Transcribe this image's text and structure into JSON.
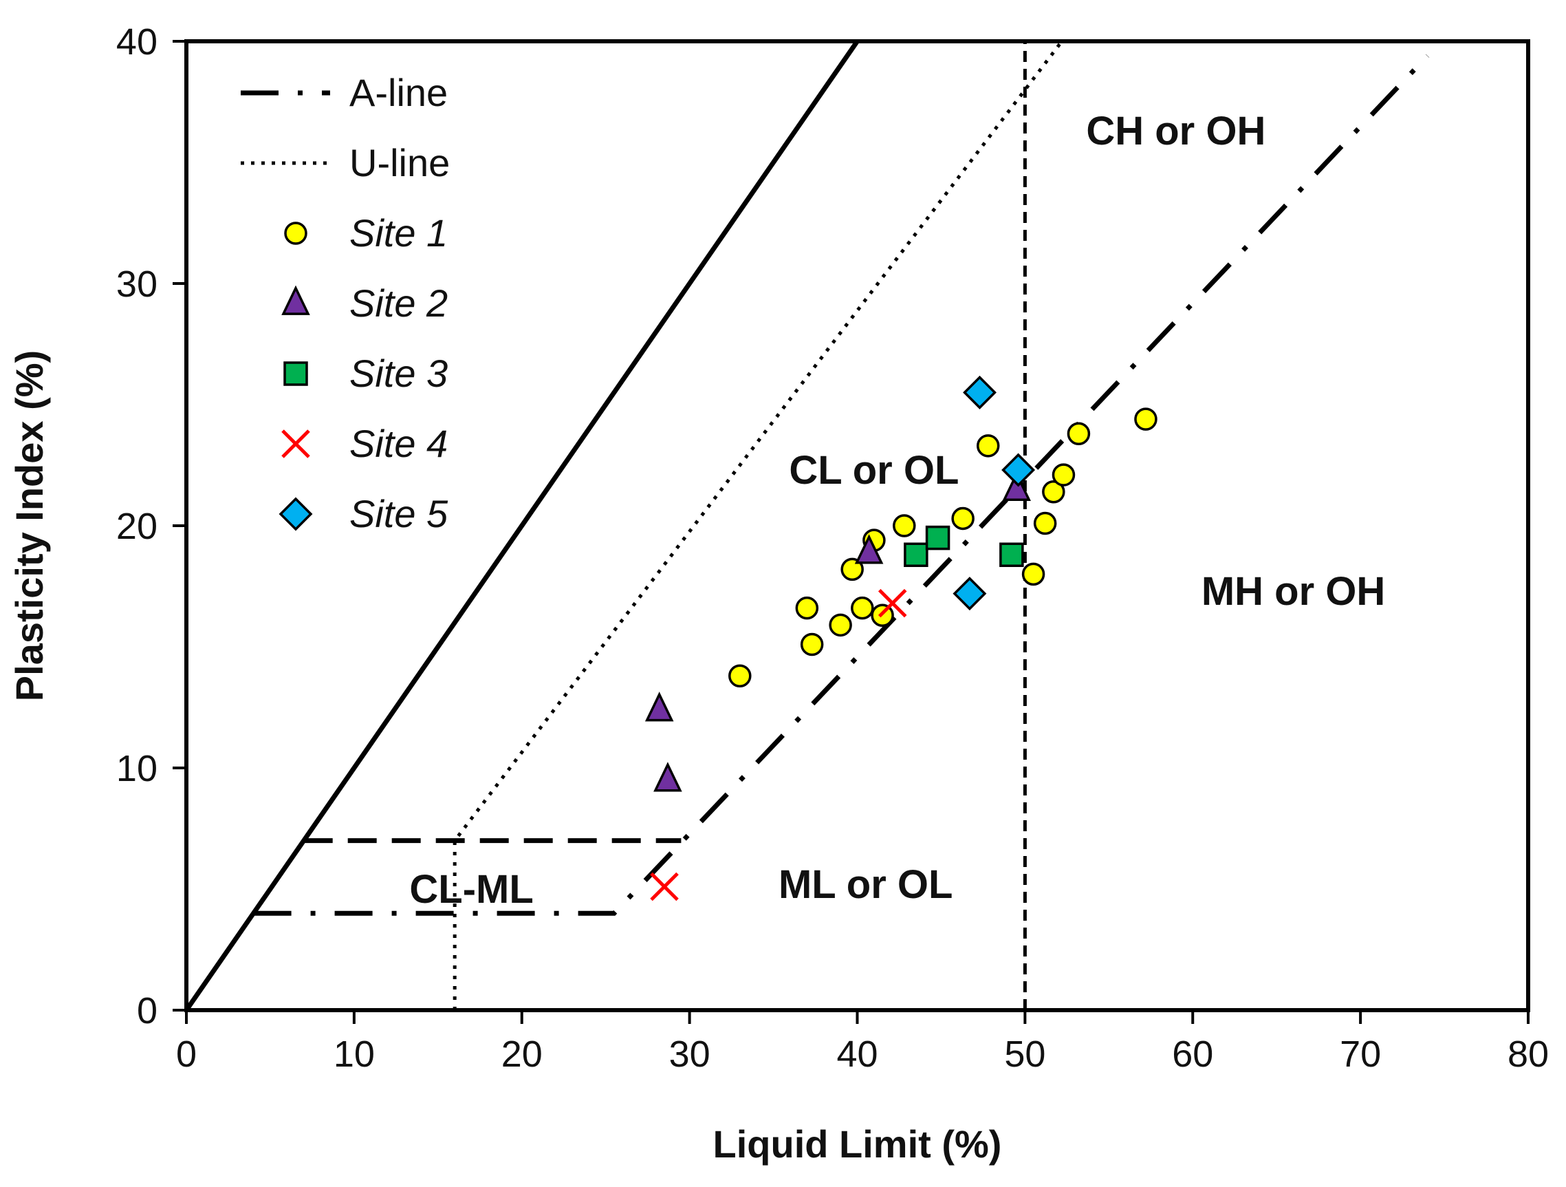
{
  "chart_data": {
    "type": "scatter",
    "title": "",
    "xlabel": "Liquid Limit (%)",
    "ylabel": "Plasticity Index (%)",
    "xlim": [
      0,
      80
    ],
    "ylim": [
      0,
      40
    ],
    "x_ticks": [
      0,
      10,
      20,
      30,
      40,
      50,
      60,
      70,
      80
    ],
    "y_ticks": [
      0,
      10,
      20,
      30,
      40
    ],
    "grid": false,
    "legend_position": "top-left",
    "reference_lines": [
      {
        "name": "A-line",
        "legend": true,
        "style": "dash-dot",
        "points": [
          [
            4,
            4
          ],
          [
            25.5,
            4
          ],
          [
            74,
            39.4
          ]
        ]
      },
      {
        "name": "U-line",
        "legend": true,
        "style": "dotted",
        "points": [
          [
            16,
            0
          ],
          [
            16,
            7
          ],
          [
            52.2,
            40
          ]
        ]
      },
      {
        "name": "boundary-line",
        "legend": false,
        "style": "solid",
        "points": [
          [
            0,
            0
          ],
          [
            40,
            40
          ]
        ]
      },
      {
        "name": "LL50-line",
        "legend": false,
        "style": "short-dash",
        "points": [
          [
            50,
            0
          ],
          [
            50,
            40
          ]
        ]
      },
      {
        "name": "PI7-line",
        "legend": false,
        "style": "dashed",
        "points": [
          [
            7,
            7
          ],
          [
            29.5,
            7
          ]
        ]
      }
    ],
    "regions": [
      {
        "label": "CH or OH",
        "x": 59,
        "y": 36.3
      },
      {
        "label": "CL or OL",
        "x": 41,
        "y": 22.3
      },
      {
        "label": "MH  or  OH",
        "x": 66,
        "y": 17.3
      },
      {
        "label": "ML or OL",
        "x": 40.5,
        "y": 5.2
      },
      {
        "label": "CL-ML",
        "x": 17,
        "y": 5
      },
      {
        "label": "",
        "x": 0,
        "y": 0
      }
    ],
    "series": [
      {
        "name": "Site 1",
        "marker": "circle",
        "fill": "#ffff00",
        "points": [
          [
            33,
            13.8
          ],
          [
            37,
            16.6
          ],
          [
            37.3,
            15.1
          ],
          [
            39,
            15.9
          ],
          [
            39.7,
            18.2
          ],
          [
            40.3,
            16.6
          ],
          [
            41,
            19.4
          ],
          [
            41.5,
            16.3
          ],
          [
            42.8,
            20
          ],
          [
            46.3,
            20.3
          ],
          [
            47.8,
            23.3
          ],
          [
            50.5,
            18
          ],
          [
            51.2,
            20.1
          ],
          [
            51.7,
            21.4
          ],
          [
            52.3,
            22.1
          ],
          [
            53.2,
            23.8
          ],
          [
            57.2,
            24.4
          ]
        ]
      },
      {
        "name": "Site 2",
        "marker": "triangle",
        "fill": "#7030a0",
        "points": [
          [
            28.2,
            12.4
          ],
          [
            28.7,
            9.5
          ],
          [
            40.7,
            18.9
          ],
          [
            49.5,
            21.5
          ]
        ]
      },
      {
        "name": "Site 3",
        "marker": "square",
        "fill": "#00b050",
        "points": [
          [
            43.5,
            18.8
          ],
          [
            44.8,
            19.5
          ],
          [
            49.2,
            18.8
          ]
        ]
      },
      {
        "name": "Site 4",
        "marker": "x",
        "fill": "#ff0000",
        "points": [
          [
            28.5,
            5.1
          ],
          [
            42.1,
            16.8
          ]
        ]
      },
      {
        "name": "Site 5",
        "marker": "diamond",
        "fill": "#00b0f0",
        "points": [
          [
            47.3,
            25.5
          ],
          [
            49.6,
            22.3
          ],
          [
            46.7,
            17.2
          ]
        ]
      }
    ]
  }
}
